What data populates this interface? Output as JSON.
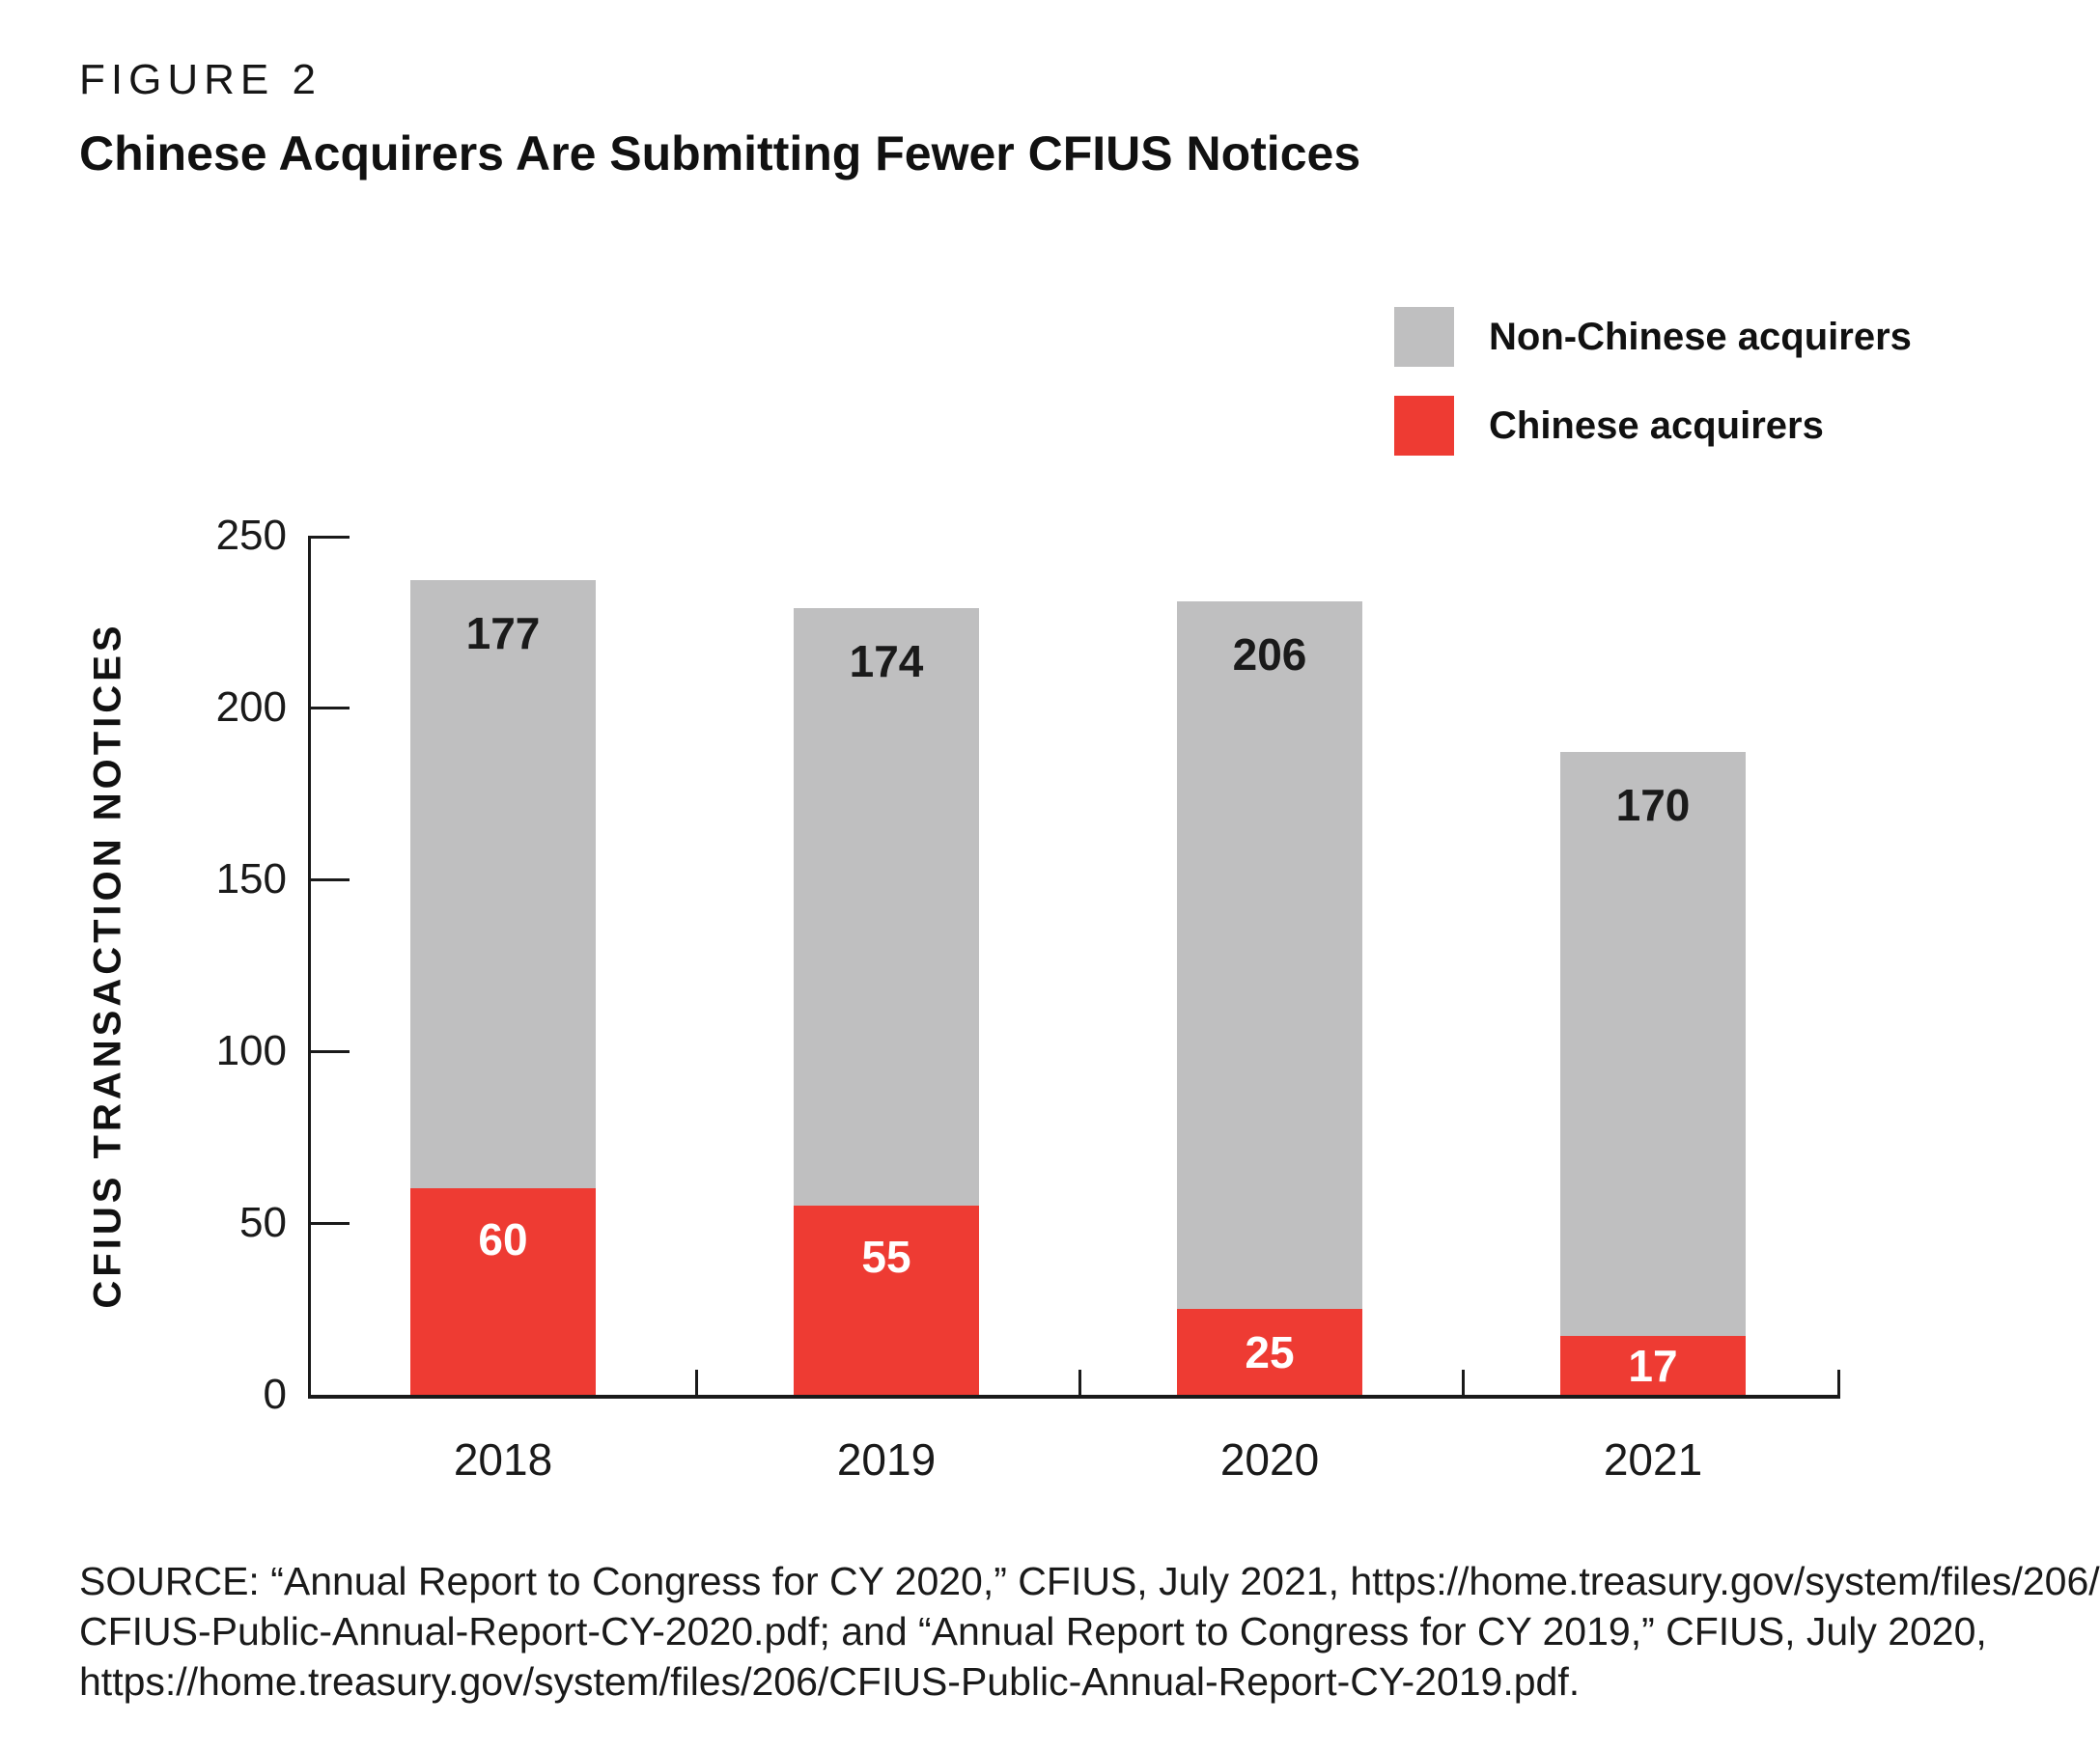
{
  "figure": {
    "eyebrow": "FIGURE 2",
    "title": "Chinese Acquirers Are Submitting Fewer CFIUS Notices"
  },
  "legend": {
    "items": [
      {
        "label": "Non-Chinese acquirers",
        "color": "#BFBFC0"
      },
      {
        "label": "Chinese acquirers",
        "color": "#EE3B33"
      }
    ]
  },
  "chart_data": {
    "type": "bar",
    "stacked": true,
    "title": "Chinese Acquirers Are Submitting Fewer CFIUS Notices",
    "categories": [
      "2018",
      "2019",
      "2020",
      "2021"
    ],
    "series": [
      {
        "name": "Chinese acquirers",
        "color": "#EE3B33",
        "label_color": "#FFFFFF",
        "values": [
          60,
          55,
          25,
          17
        ]
      },
      {
        "name": "Non-Chinese acquirers",
        "color": "#BFBFC0",
        "label_color": "#1A1A1A",
        "values": [
          177,
          174,
          206,
          170
        ]
      }
    ],
    "totals": [
      237,
      229,
      231,
      187
    ],
    "xlabel": "",
    "ylabel": "CFIUS TRANSACTION NOTICES",
    "ylim": [
      0,
      250
    ],
    "yticks": [
      0,
      50,
      100,
      150,
      200,
      250
    ],
    "grid": false,
    "legend_position": "top-right",
    "axis_color": "#1A1A1A"
  },
  "source": {
    "lines": [
      "SOURCE: “Annual Report to Congress for CY 2020,” CFIUS, July 2021, https://home.treasury.gov/system/files/206/",
      "CFIUS-Public-Annual-Report-CY-2020.pdf; and “Annual Report to Congress for CY 2019,” CFIUS, July 2020,",
      "https://home.treasury.gov/system/files/206/CFIUS-Public-Annual-Report-CY-2019.pdf."
    ]
  }
}
